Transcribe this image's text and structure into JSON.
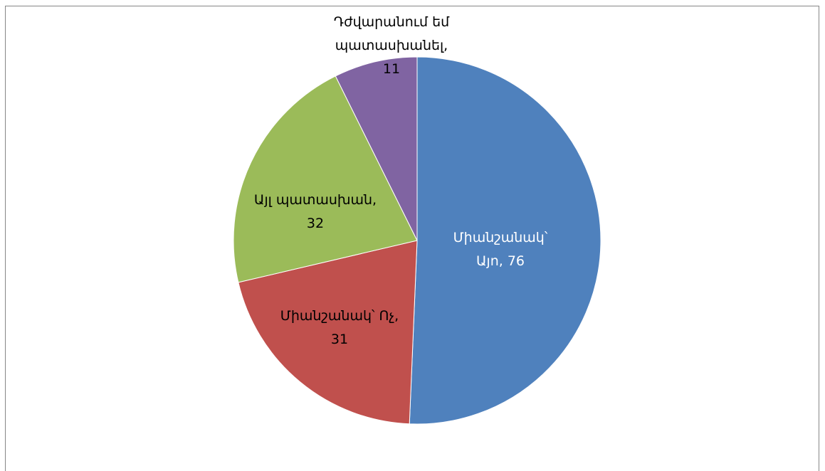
{
  "chart_data": {
    "type": "pie",
    "categories": [
      "Միանշանակ՝ Այո,",
      "Միանշանակ՝ Ոչ,",
      "Այլ պատասխան,",
      "Դժվարանում եմ պատասխանել,"
    ],
    "values": [
      76,
      31,
      32,
      11
    ],
    "colors": [
      "#4f81bd",
      "#c0504d",
      "#9bbb59",
      "#8064a2"
    ]
  }
}
